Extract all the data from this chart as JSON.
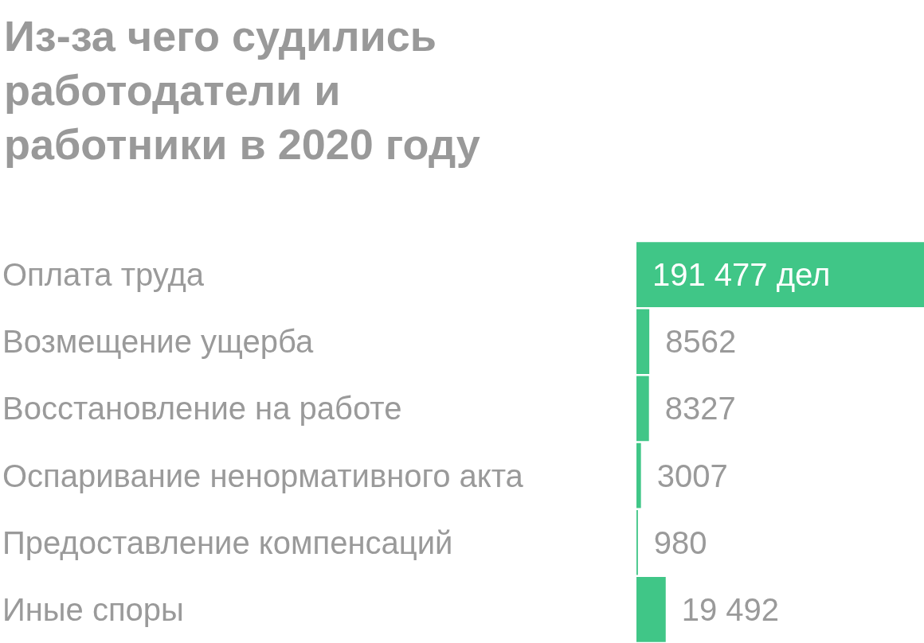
{
  "chart_data": {
    "type": "bar",
    "orientation": "horizontal",
    "title": "Из-за чего судились работодатели и работники в 2020 году",
    "categories": [
      "Оплата труда",
      "Возмещение ущерба",
      "Восстановление на работе",
      "Оспаривание ненормативного акта",
      "Предоставление компенсаций",
      "Иные споры"
    ],
    "values": [
      191477,
      8562,
      8327,
      3007,
      980,
      19492
    ],
    "value_labels": [
      "191 477 дел",
      "8562",
      "8327",
      "3007",
      "980",
      "19 492"
    ],
    "color": "#40c687"
  }
}
